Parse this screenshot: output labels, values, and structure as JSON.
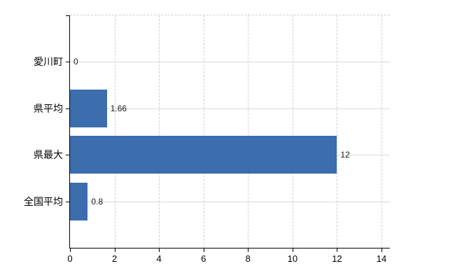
{
  "chart_data": {
    "type": "bar",
    "orientation": "horizontal",
    "title": "",
    "xlabel": "",
    "ylabel": "",
    "categories": [
      "愛川町",
      "県平均",
      "県最大",
      "全国平均"
    ],
    "values": [
      0,
      1.66,
      12,
      0.8
    ],
    "value_labels": [
      "0",
      "1.66",
      "12",
      "0.8"
    ],
    "xlim": [
      0,
      14.4
    ],
    "xticks": [
      0,
      2,
      4,
      6,
      8,
      10,
      12,
      14
    ],
    "xtick_labels": [
      "0",
      "2",
      "4",
      "6",
      "8",
      "10",
      "12",
      "14"
    ],
    "legend_position": "none",
    "grid": {
      "vertical_gridlines": "dashed",
      "horizontal_gridlines": "solid",
      "top_border": "dashed"
    },
    "colors": {
      "bar_fill": "#3c6dad",
      "axis_line": "#000000",
      "vertical_gridline": "#d2cfd2",
      "horizontal_gridline": "#d9d9d9",
      "label_text": "#000000",
      "background": "#ffffff"
    }
  }
}
